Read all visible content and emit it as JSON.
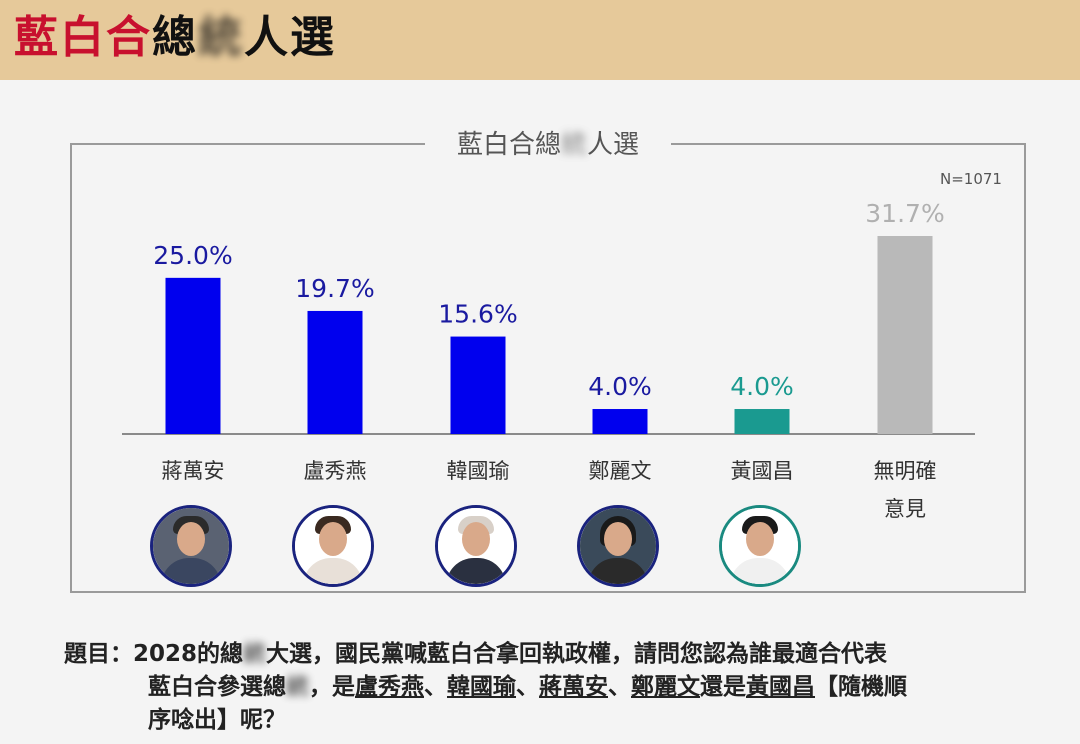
{
  "header": {
    "title_part1": "藍白合",
    "title_part2": "總",
    "title_blurred": "統",
    "title_part3": "人選"
  },
  "panel": {
    "title_part1": "藍白合總",
    "title_blurred": "統",
    "title_part2": "人選",
    "sample_size": "N=1071"
  },
  "chart_data": {
    "type": "bar",
    "categories": [
      "蔣萬安",
      "盧秀燕",
      "韓國瑜",
      "鄭麗文",
      "黃國昌",
      "無明確意見"
    ],
    "values": [
      25.0,
      19.7,
      15.6,
      4.0,
      4.0,
      31.7
    ],
    "value_labels": [
      "25.0%",
      "19.7%",
      "15.6%",
      "4.0%",
      "4.0%",
      "31.7%"
    ],
    "colors": [
      "#0000ee",
      "#0000ee",
      "#0000ee",
      "#0000ee",
      "#1a9a90",
      "#b9b9b9"
    ],
    "label_colors": [
      "#1a1aa0",
      "#1a1aa0",
      "#1a1aa0",
      "#1a1aa0",
      "#1a9a90",
      "#b0b0b0"
    ],
    "ylim": [
      0,
      31.7
    ],
    "grid": false
  },
  "candidates": [
    {
      "name": "蔣萬安",
      "line2": ""
    },
    {
      "name": "盧秀燕",
      "line2": ""
    },
    {
      "name": "韓國瑜",
      "line2": ""
    },
    {
      "name": "鄭麗文",
      "line2": ""
    },
    {
      "name": "黃國昌",
      "line2": ""
    },
    {
      "name": "無明確",
      "line2": "意見"
    }
  ],
  "question": {
    "line1_a": "題目：2028的總",
    "line1_blur": "統",
    "line1_b": "大選，國民黨喊藍白合拿回執政權，請問您認為誰最適合代表",
    "line2_a": "藍白合參選總",
    "line2_blur": "統",
    "line2_b": "，是",
    "name1": "盧秀燕",
    "sep": "、",
    "name2": "韓國瑜",
    "name3": "蔣萬安",
    "name4": "鄭麗文",
    "line2_c": "還是",
    "name5": "黃國昌",
    "line2_d": "【隨機順",
    "line3": "序唸出】呢？"
  }
}
